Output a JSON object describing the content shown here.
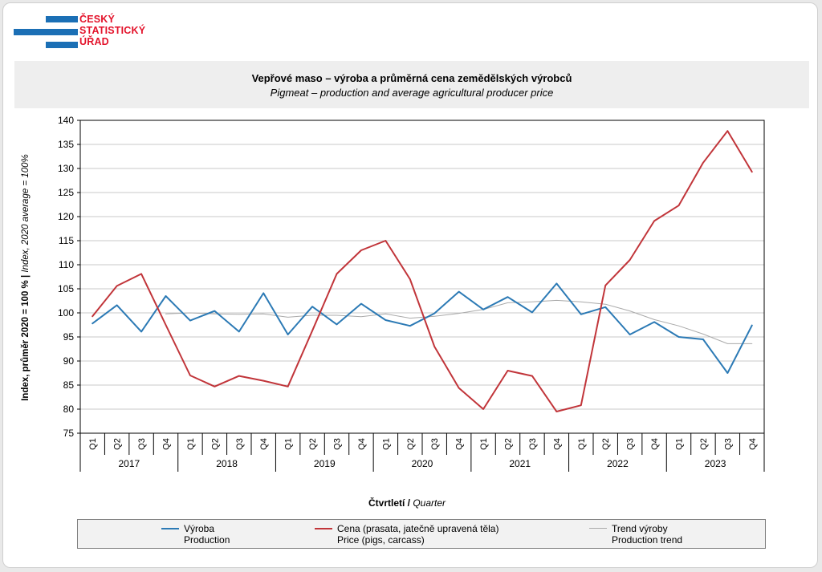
{
  "logo": {
    "lines": [
      "ČESKÝ",
      "STATISTICKÝ",
      "ÚŘAD"
    ]
  },
  "title": {
    "cz": "Vepřové maso – výroba a průměrná cena zemědělských  výrobců",
    "en": "Pigmeat – production and average agricultural producer price"
  },
  "chart_data": {
    "type": "line",
    "ylabel_cz": "Index, průměr 2020 = 100 % | ",
    "ylabel_en": "Index, 2020 average = 100%",
    "xlabel_cz": "Čtvrtletí / ",
    "xlabel_en": "Quarter",
    "ylim": [
      75,
      140
    ],
    "y_ticks": [
      75,
      80,
      85,
      90,
      95,
      100,
      105,
      110,
      115,
      120,
      125,
      130,
      135,
      140
    ],
    "grid": true,
    "quarters": [
      "Q1",
      "Q2",
      "Q3",
      "Q4"
    ],
    "years": [
      "2017",
      "2018",
      "2019",
      "2020",
      "2021",
      "2022",
      "2023"
    ],
    "series": [
      {
        "name_cz": "Výroba",
        "name_en": "Production",
        "color": "#2c7ab5",
        "values": [
          97.8,
          101.6,
          96.1,
          103.5,
          98.4,
          100.4,
          96.1,
          104.1,
          95.5,
          101.3,
          97.6,
          101.9,
          98.5,
          97.3,
          99.9,
          104.4,
          100.7,
          103.3,
          100.1,
          106.1,
          99.7,
          101.2,
          95.5,
          98.1,
          95.0,
          94.5,
          87.5,
          97.4
        ]
      },
      {
        "name_cz": "Cena (prasata, jatečně upravená těla)",
        "name_en": "Price (pigs, carcass)",
        "color": "#c1353a",
        "values": [
          99.3,
          105.6,
          108.1,
          97.5,
          87.0,
          84.7,
          86.9,
          85.9,
          84.7,
          96.3,
          108.1,
          113.0,
          115.0,
          107.0,
          93.0,
          84.4,
          80.0,
          88.0,
          86.9,
          79.5,
          80.8,
          105.7,
          111.0,
          119.1,
          122.3,
          131.2,
          137.8,
          129.3
        ]
      },
      {
        "name_cz": "Trend výroby",
        "name_en": "Production trend",
        "color": "#aaaaaa",
        "values": [
          null,
          null,
          null,
          99.8,
          100.0,
          99.8,
          99.7,
          99.8,
          99.1,
          99.5,
          99.5,
          99.2,
          99.8,
          98.9,
          99.3,
          99.9,
          100.7,
          102.1,
          102.3,
          102.6,
          102.3,
          101.8,
          100.4,
          98.6,
          97.3,
          95.6,
          93.6,
          93.6
        ]
      }
    ],
    "legend_position": "bottom"
  }
}
